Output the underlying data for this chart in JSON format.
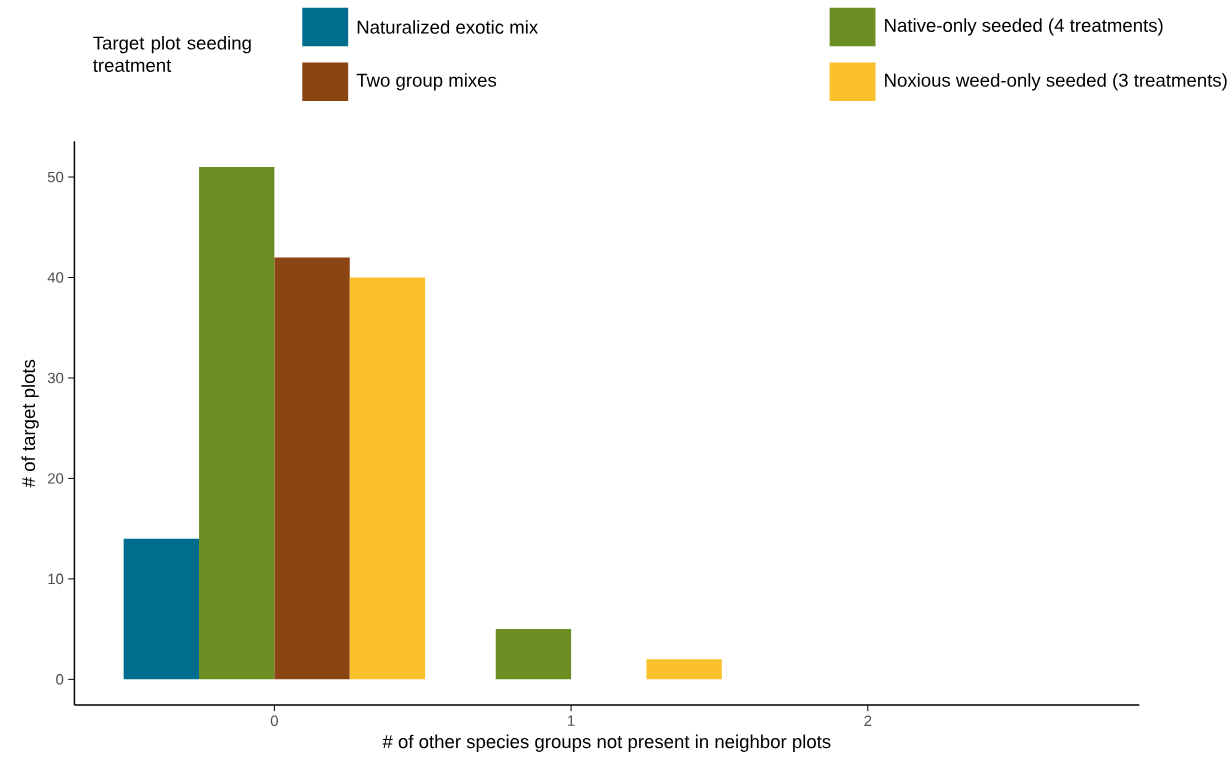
{
  "chart_data": {
    "type": "bar",
    "xlabel": "# of other species groups not present in neighbor plots",
    "ylabel": "# of target plots",
    "legend_title": "Target plot seeding treatment",
    "legend": "top",
    "grid": false,
    "categories": [
      "0",
      "1",
      "2"
    ],
    "ylim": [
      -2.55,
      53.55
    ],
    "yticks": [
      0,
      10,
      20,
      30,
      40,
      50
    ],
    "series": [
      {
        "name": "Naturalized exotic mix",
        "color": "#006d8f",
        "values": [
          14,
          null,
          null
        ]
      },
      {
        "name": "Native-only seeded (4 treatments)",
        "color": "#6b8e23",
        "values": [
          51,
          5,
          null
        ]
      },
      {
        "name": "Two group mixes",
        "color": "#8b4513",
        "values": [
          42,
          null,
          null
        ]
      },
      {
        "name": "Noxious weed-only seeded (3 treatments)",
        "color": "#fbc02d",
        "values": [
          40,
          2,
          null
        ]
      }
    ]
  }
}
